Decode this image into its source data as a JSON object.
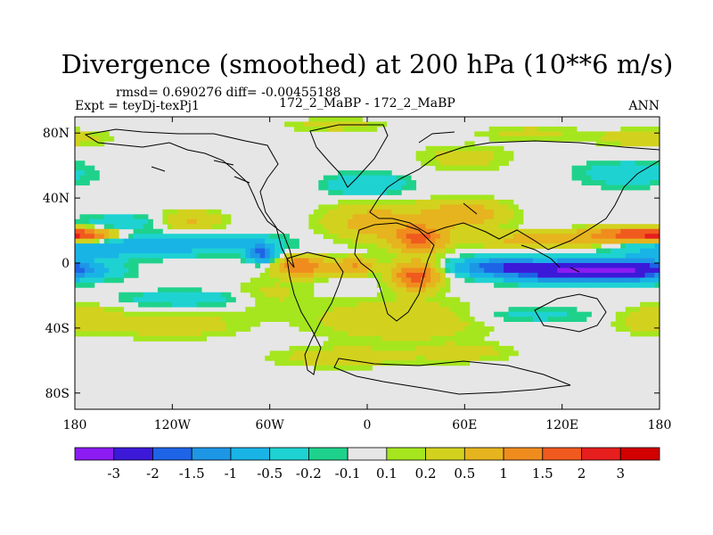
{
  "chart_data": {
    "type": "heatmap",
    "title": "Divergence (smoothed) at 200 hPa (10**6 m/s)",
    "stats": "rmsd= 0.690276  diff= -0.00455188",
    "left_label": "Expt = teyDj-texPj1",
    "center_label": "172_2_MaBP - 172_2_MaBP",
    "right_label": "ANN",
    "x_ticks": [
      "180",
      "120W",
      "60W",
      "0",
      "60E",
      "120E",
      "180"
    ],
    "y_ticks": [
      "80N",
      "40N",
      "0",
      "40S",
      "80S"
    ],
    "xlim": [
      -180,
      180
    ],
    "ylim": [
      -90,
      90
    ],
    "colorbar_labels": [
      "-3",
      "-2",
      "-1.5",
      "-1",
      "-0.5",
      "-0.2",
      "-0.1",
      "0.1",
      "0.2",
      "0.5",
      "1",
      "1.5",
      "2",
      "3"
    ],
    "colorbar_colors": [
      "#8c1cf2",
      "#3c19d9",
      "#1e64e6",
      "#1e96e6",
      "#19b4e6",
      "#1ed2d2",
      "#1ed28c",
      "#e6e6e6",
      "#a5e61e",
      "#d2d21e",
      "#e6b41e",
      "#f08c1e",
      "#f05a1e",
      "#e61e1e",
      "#d20000"
    ],
    "fields": [
      {
        "lon": 135,
        "lat": -5,
        "value": -3.4,
        "sx": 45,
        "sy": 6
      },
      {
        "lon": 80,
        "lat": -2,
        "value": -1.4,
        "sx": 25,
        "sy": 5
      },
      {
        "lon": 170,
        "lat": -3,
        "value": -1.0,
        "sx": 20,
        "sy": 5
      },
      {
        "lon": -165,
        "lat": 9,
        "value": -0.8,
        "sx": 40,
        "sy": 6
      },
      {
        "lon": -105,
        "lat": 12,
        "value": -0.7,
        "sx": 50,
        "sy": 6
      },
      {
        "lon": -65,
        "lat": 6,
        "value": -1.7,
        "sx": 8,
        "sy": 5
      },
      {
        "lon": 0,
        "lat": 48,
        "value": -0.5,
        "sx": 25,
        "sy": 7
      },
      {
        "lon": -150,
        "lat": 25,
        "value": -0.4,
        "sx": 30,
        "sy": 5
      },
      {
        "lon": 160,
        "lat": 55,
        "value": -0.4,
        "sx": 30,
        "sy": 8
      },
      {
        "lon": 170,
        "lat": 77,
        "value": 0.4,
        "sx": 30,
        "sy": 5
      },
      {
        "lon": -110,
        "lat": -22,
        "value": -0.4,
        "sx": 45,
        "sy": 5
      },
      {
        "lon": 100,
        "lat": -32,
        "value": -0.3,
        "sx": 40,
        "sy": 5
      },
      {
        "lon": -175,
        "lat": 17,
        "value": 1.6,
        "sx": 20,
        "sy": 4
      },
      {
        "lon": 160,
        "lat": 18,
        "value": 1.6,
        "sx": 25,
        "sy": 4
      },
      {
        "lon": 110,
        "lat": 14,
        "value": 0.8,
        "sx": 40,
        "sy": 5
      },
      {
        "lon": 32,
        "lat": 15,
        "value": 1.6,
        "sx": 15,
        "sy": 8
      },
      {
        "lon": 30,
        "lat": -8,
        "value": 1.8,
        "sx": 14,
        "sy": 8
      },
      {
        "lon": -40,
        "lat": -2,
        "value": 1.5,
        "sx": 15,
        "sy": 6
      },
      {
        "lon": -8,
        "lat": -2,
        "value": 1.0,
        "sx": 12,
        "sy": 5
      },
      {
        "lon": 5,
        "lat": 25,
        "value": 0.7,
        "sx": 30,
        "sy": 12
      },
      {
        "lon": 60,
        "lat": 30,
        "value": 0.9,
        "sx": 25,
        "sy": 8
      },
      {
        "lon": 20,
        "lat": -35,
        "value": 0.5,
        "sx": 50,
        "sy": 12
      },
      {
        "lon": -120,
        "lat": -38,
        "value": 0.4,
        "sx": 40,
        "sy": 8
      },
      {
        "lon": -60,
        "lat": -20,
        "value": 0.3,
        "sx": 25,
        "sy": 10
      },
      {
        "lon": -170,
        "lat": -33,
        "value": 0.25,
        "sx": 20,
        "sy": 10
      },
      {
        "lon": 170,
        "lat": -35,
        "value": 0.3,
        "sx": 20,
        "sy": 8
      },
      {
        "lon": -15,
        "lat": -58,
        "value": 0.4,
        "sx": 40,
        "sy": 6
      },
      {
        "lon": 60,
        "lat": -55,
        "value": 0.3,
        "sx": 30,
        "sy": 6
      },
      {
        "lon": -110,
        "lat": 26,
        "value": 0.6,
        "sx": 20,
        "sy": 6
      },
      {
        "lon": 60,
        "lat": 65,
        "value": 0.3,
        "sx": 30,
        "sy": 8
      },
      {
        "lon": -20,
        "lat": 85,
        "value": 0.3,
        "sx": 30,
        "sy": 4
      },
      {
        "lon": 100,
        "lat": 80,
        "value": 0.3,
        "sx": 30,
        "sy": 4
      }
    ]
  }
}
